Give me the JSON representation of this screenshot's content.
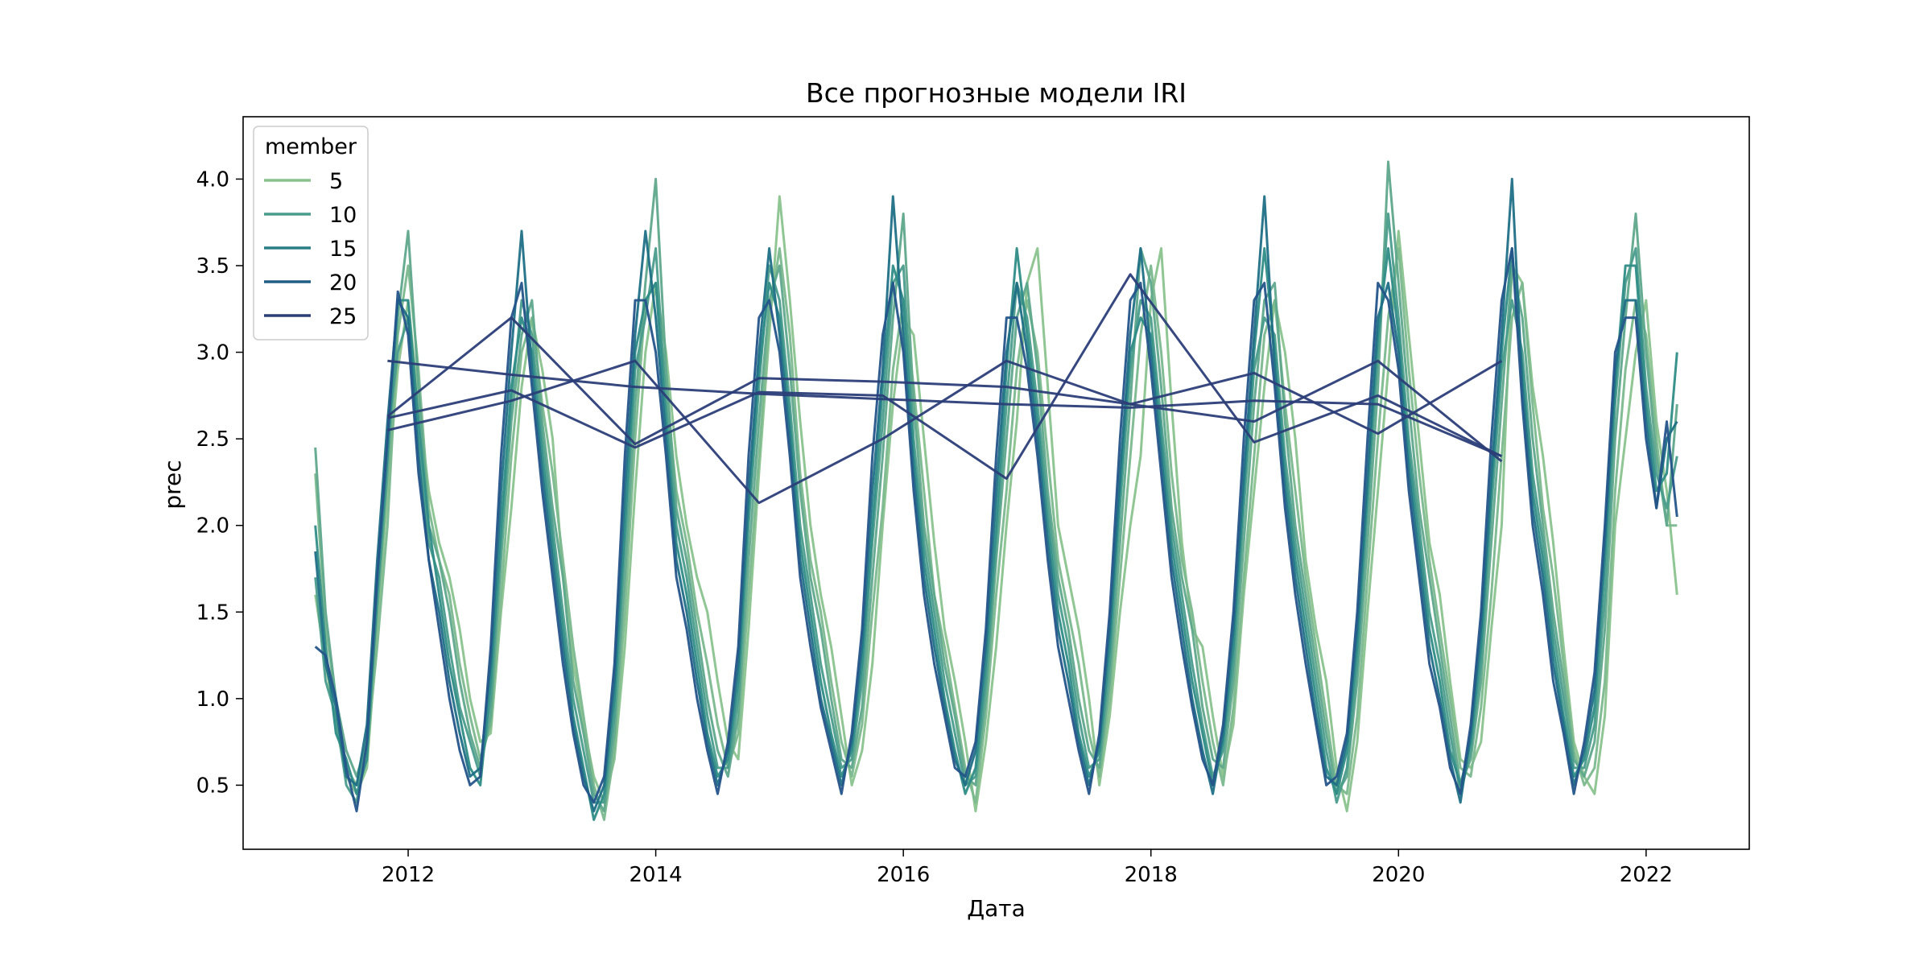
{
  "chart_data": {
    "type": "line",
    "title": "Все прогнозные модели IRI",
    "xlabel": "Дата",
    "ylabel": "prec",
    "xlim": [
      "2010-09-01",
      "2022-11-01"
    ],
    "ylim": [
      0.13,
      4.36
    ],
    "x_ticks": [
      "2012",
      "2014",
      "2016",
      "2018",
      "2020",
      "2022"
    ],
    "y_ticks": [
      "0.5",
      "1.0",
      "1.5",
      "2.0",
      "2.5",
      "3.0",
      "3.5",
      "4.0"
    ],
    "grid": false,
    "legend": {
      "title": "member",
      "placement": "top-left",
      "entries": [
        {
          "label": "5",
          "color": "#8ac28e"
        },
        {
          "label": "10",
          "color": "#4a9c8c"
        },
        {
          "label": "15",
          "color": "#2a7f85"
        },
        {
          "label": "20",
          "color": "#1f5f86"
        },
        {
          "label": "25",
          "color": "#2b3e78"
        }
      ]
    },
    "series_note": "",
    "series": [
      {
        "member": 1,
        "color": "#8ac28e",
        "start": "2011-04",
        "values": [
          1.6,
          1.2,
          0.85,
          0.55,
          0.45,
          0.6,
          1.4,
          2.2,
          2.9,
          3.3,
          2.7,
          2.2,
          1.9,
          1.7,
          1.4,
          1.0,
          0.75,
          0.8,
          1.5,
          2.1,
          2.8,
          3.2,
          2.9,
          2.5,
          1.7,
          1.2,
          0.85,
          0.55,
          0.4,
          0.65,
          1.3,
          2.2,
          3.0,
          3.4,
          3.0,
          2.4,
          2.0,
          1.7,
          1.5,
          1.1,
          0.75,
          0.65,
          1.4,
          2.3,
          3.1,
          3.9,
          3.3,
          2.6,
          2.0,
          1.6,
          1.3,
          0.9,
          0.5,
          0.7,
          1.2,
          2.0,
          2.7,
          3.2,
          3.1,
          2.5,
          1.9,
          1.4,
          1.1,
          0.75,
          0.35,
          0.75,
          1.3,
          2.0,
          2.6,
          3.4,
          3.6,
          2.8,
          2.0,
          1.7,
          1.4,
          1.0,
          0.5,
          0.9,
          1.5,
          2.0,
          2.4,
          3.3,
          3.6,
          2.7,
          1.9,
          1.4,
          1.3,
          0.9,
          0.55,
          0.85,
          1.6,
          2.2,
          2.8,
          3.3,
          3.0,
          2.5,
          1.8,
          1.4,
          1.1,
          0.6,
          0.35,
          0.75,
          1.5,
          2.2,
          2.9,
          3.7,
          3.1,
          2.5,
          1.9,
          1.6,
          1.1,
          0.65,
          0.6,
          0.75,
          1.4,
          2.0,
          3.5,
          3.4,
          2.8,
          2.4,
          1.9,
          1.3,
          0.75,
          0.55,
          0.45,
          0.9,
          2.0,
          2.5,
          3.0,
          3.3,
          2.6,
          2.2,
          1.6
        ]
      },
      {
        "member": 2,
        "color": "#7bb88e",
        "start": "2011-04",
        "values": [
          2.3,
          1.4,
          1.0,
          0.6,
          0.5,
          0.7,
          1.3,
          2.0,
          3.1,
          3.5,
          2.9,
          2.1,
          1.8,
          1.6,
          1.2,
          0.9,
          0.65,
          0.85,
          1.6,
          2.4,
          3.0,
          3.2,
          2.7,
          2.3,
          1.8,
          1.3,
          0.9,
          0.5,
          0.3,
          0.7,
          1.5,
          2.5,
          3.3,
          3.4,
          2.8,
          2.2,
          1.9,
          1.5,
          1.2,
          0.85,
          0.6,
          0.8,
          1.6,
          2.4,
          3.2,
          3.6,
          3.1,
          2.3,
          1.8,
          1.5,
          1.1,
          0.75,
          0.55,
          0.85,
          1.5,
          2.1,
          2.9,
          3.3,
          2.8,
          2.2,
          1.6,
          1.3,
          0.95,
          0.6,
          0.4,
          0.9,
          1.6,
          2.2,
          2.9,
          3.3,
          3.0,
          2.4,
          1.8,
          1.5,
          1.2,
          0.8,
          0.55,
          1.0,
          1.7,
          2.4,
          3.1,
          3.5,
          3.0,
          2.3,
          1.8,
          1.5,
          1.1,
          0.75,
          0.5,
          0.95,
          1.7,
          2.4,
          3.1,
          3.3,
          2.7,
          2.2,
          1.7,
          1.3,
          0.9,
          0.5,
          0.45,
          0.9,
          1.7,
          2.5,
          3.2,
          3.6,
          2.9,
          2.3,
          1.8,
          1.4,
          1.0,
          0.6,
          0.55,
          0.95,
          1.6,
          2.4,
          3.2,
          3.4,
          2.7,
          2.1,
          1.7,
          1.2,
          0.7,
          0.5,
          0.6,
          1.1,
          2.2,
          2.9,
          3.3,
          3.1,
          2.5,
          2.0,
          2.0
        ]
      },
      {
        "member": 3,
        "color": "#5fa88c",
        "start": "2011-04",
        "values": [
          2.45,
          1.5,
          1.0,
          0.7,
          0.55,
          0.75,
          1.5,
          2.3,
          3.2,
          3.7,
          2.8,
          2.0,
          1.8,
          1.5,
          1.1,
          0.8,
          0.6,
          0.9,
          1.8,
          2.6,
          3.1,
          3.3,
          2.6,
          2.1,
          1.7,
          1.1,
          0.8,
          0.45,
          0.35,
          0.8,
          1.7,
          2.7,
          3.4,
          4.0,
          2.9,
          2.1,
          1.8,
          1.4,
          1.0,
          0.7,
          0.55,
          0.9,
          1.8,
          2.6,
          3.3,
          3.5,
          2.9,
          2.2,
          1.7,
          1.4,
          1.0,
          0.65,
          0.6,
          0.95,
          1.7,
          2.4,
          3.2,
          3.8,
          2.7,
          2.0,
          1.6,
          1.2,
          0.9,
          0.55,
          0.5,
          1.0,
          1.8,
          2.5,
          3.2,
          3.4,
          2.9,
          2.2,
          1.7,
          1.4,
          1.0,
          0.7,
          0.6,
          1.1,
          1.9,
          2.7,
          3.6,
          3.4,
          2.8,
          2.1,
          1.7,
          1.4,
          0.95,
          0.65,
          0.6,
          1.1,
          1.9,
          2.7,
          3.3,
          3.4,
          2.6,
          2.0,
          1.6,
          1.2,
          0.8,
          0.45,
          0.55,
          1.1,
          1.9,
          2.8,
          4.1,
          3.4,
          2.7,
          2.1,
          1.7,
          1.3,
          0.9,
          0.5,
          0.65,
          1.1,
          1.9,
          2.7,
          3.5,
          3.2,
          2.5,
          2.0,
          1.5,
          1.1,
          0.65,
          0.55,
          0.75,
          1.4,
          2.5,
          3.2,
          3.8,
          3.0,
          2.4,
          2.0,
          2.7
        ]
      },
      {
        "member": 4,
        "color": "#4a9c8c",
        "start": "2011-04",
        "values": [
          1.7,
          1.1,
          0.9,
          0.5,
          0.4,
          0.8,
          1.7,
          2.5,
          3.0,
          3.2,
          2.5,
          1.9,
          1.7,
          1.3,
          0.95,
          0.75,
          0.55,
          1.0,
          1.9,
          2.7,
          3.3,
          3.1,
          2.5,
          2.0,
          1.5,
          1.0,
          0.7,
          0.4,
          0.4,
          0.9,
          1.9,
          2.9,
          3.2,
          3.6,
          2.7,
          2.0,
          1.7,
          1.3,
          0.9,
          0.6,
          0.6,
          1.0,
          2.0,
          2.8,
          3.5,
          3.3,
          2.7,
          2.0,
          1.6,
          1.2,
          0.9,
          0.6,
          0.65,
          1.1,
          1.9,
          2.6,
          3.4,
          3.5,
          2.5,
          1.9,
          1.5,
          1.1,
          0.8,
          0.5,
          0.55,
          1.1,
          1.9,
          2.7,
          3.4,
          3.2,
          2.7,
          2.1,
          1.6,
          1.3,
          0.9,
          0.6,
          0.65,
          1.2,
          2.1,
          2.9,
          3.3,
          3.2,
          2.6,
          2.0,
          1.6,
          1.2,
          0.85,
          0.55,
          0.7,
          1.2,
          2.1,
          2.9,
          3.2,
          3.1,
          2.4,
          1.9,
          1.5,
          1.1,
          0.7,
          0.4,
          0.6,
          1.2,
          2.1,
          3.0,
          3.8,
          3.2,
          2.5,
          2.0,
          1.5,
          1.2,
          0.8,
          0.45,
          0.7,
          1.2,
          2.1,
          2.9,
          3.3,
          3.0,
          2.3,
          1.9,
          1.4,
          1.0,
          0.6,
          0.6,
          0.85,
          1.6,
          2.7,
          3.4,
          3.6,
          2.8,
          2.3,
          2.1,
          2.4
        ]
      },
      {
        "member": 5,
        "color": "#2f8c87",
        "start": "2011-04",
        "values": [
          2.0,
          1.3,
          0.8,
          0.65,
          0.45,
          0.65,
          1.6,
          2.4,
          3.3,
          3.3,
          2.6,
          2.0,
          1.6,
          1.2,
          0.9,
          0.6,
          0.5,
          1.1,
          2.0,
          2.8,
          3.2,
          3.0,
          2.4,
          1.9,
          1.4,
          0.9,
          0.6,
          0.3,
          0.45,
          1.0,
          2.0,
          3.0,
          3.3,
          3.4,
          2.6,
          1.9,
          1.6,
          1.2,
          0.8,
          0.55,
          0.65,
          1.1,
          2.1,
          2.9,
          3.4,
          3.2,
          2.6,
          1.9,
          1.5,
          1.1,
          0.8,
          0.55,
          0.7,
          1.2,
          2.0,
          2.8,
          3.5,
          3.3,
          2.4,
          1.8,
          1.4,
          1.0,
          0.7,
          0.45,
          0.6,
          1.2,
          2.0,
          2.9,
          3.6,
          3.1,
          2.6,
          2.0,
          1.5,
          1.2,
          0.8,
          0.55,
          0.7,
          1.3,
          2.2,
          3.0,
          3.2,
          3.1,
          2.5,
          1.9,
          1.5,
          1.1,
          0.8,
          0.5,
          0.75,
          1.3,
          2.2,
          3.0,
          3.6,
          3.0,
          2.3,
          1.8,
          1.4,
          1.0,
          0.6,
          0.45,
          0.7,
          1.3,
          2.2,
          3.1,
          3.6,
          3.1,
          2.4,
          1.9,
          1.4,
          1.1,
          0.7,
          0.5,
          0.75,
          1.3,
          2.2,
          3.0,
          3.6,
          2.9,
          2.2,
          1.8,
          1.3,
          0.9,
          0.55,
          0.65,
          0.95,
          1.8,
          2.8,
          3.5,
          3.5,
          2.7,
          2.2,
          2.3,
          3.0
        ]
      },
      {
        "member": 6,
        "color": "#1f6f86",
        "start": "2011-04",
        "values": [
          1.85,
          1.2,
          0.95,
          0.55,
          0.5,
          0.85,
          1.8,
          2.6,
          3.3,
          3.2,
          2.4,
          1.8,
          1.5,
          1.1,
          0.8,
          0.55,
          0.6,
          1.2,
          2.2,
          3.0,
          3.7,
          2.9,
          2.3,
          1.8,
          1.3,
          0.85,
          0.55,
          0.35,
          0.5,
          1.1,
          2.2,
          3.1,
          3.7,
          3.2,
          2.5,
          1.8,
          1.5,
          1.1,
          0.75,
          0.5,
          0.7,
          1.2,
          2.2,
          3.0,
          3.6,
          3.1,
          2.5,
          1.8,
          1.4,
          1.0,
          0.75,
          0.5,
          0.75,
          1.3,
          2.2,
          2.9,
          3.9,
          3.1,
          2.3,
          1.7,
          1.3,
          0.95,
          0.65,
          0.5,
          0.7,
          1.3,
          2.2,
          3.0,
          3.4,
          3.0,
          2.5,
          1.9,
          1.4,
          1.1,
          0.75,
          0.5,
          0.75,
          1.4,
          2.3,
          3.1,
          3.6,
          3.0,
          2.4,
          1.8,
          1.4,
          1.0,
          0.7,
          0.45,
          0.8,
          1.4,
          2.3,
          3.1,
          3.9,
          2.9,
          2.2,
          1.7,
          1.3,
          0.9,
          0.55,
          0.5,
          0.75,
          1.4,
          2.3,
          3.2,
          3.4,
          3.0,
          2.3,
          1.8,
          1.3,
          1.0,
          0.65,
          0.4,
          0.8,
          1.4,
          2.3,
          3.1,
          4.0,
          2.8,
          2.1,
          1.7,
          1.2,
          0.85,
          0.5,
          0.7,
          1.05,
          1.9,
          2.9,
          3.3,
          3.3,
          2.6,
          2.1,
          2.5,
          2.6
        ]
      },
      {
        "member": 7,
        "color": "#24548a",
        "start": "2011-04",
        "values": [
          1.3,
          1.25,
          1.0,
          0.6,
          0.35,
          0.75,
          1.7,
          2.5,
          3.35,
          3.1,
          2.3,
          1.8,
          1.4,
          1.0,
          0.7,
          0.5,
          0.55,
          1.3,
          2.4,
          3.2,
          3.4,
          2.8,
          2.2,
          1.7,
          1.2,
          0.8,
          0.5,
          0.4,
          0.55,
          1.2,
          2.4,
          3.3,
          3.3,
          3.0,
          2.4,
          1.7,
          1.4,
          1.0,
          0.7,
          0.45,
          0.75,
          1.3,
          2.4,
          3.2,
          3.3,
          3.0,
          2.4,
          1.7,
          1.3,
          0.95,
          0.7,
          0.45,
          0.8,
          1.4,
          2.4,
          3.1,
          3.4,
          3.0,
          2.2,
          1.6,
          1.2,
          0.9,
          0.6,
          0.55,
          0.75,
          1.4,
          2.4,
          3.2,
          3.2,
          2.9,
          2.4,
          1.8,
          1.3,
          1.0,
          0.7,
          0.45,
          0.8,
          1.5,
          2.5,
          3.3,
          3.4,
          2.9,
          2.3,
          1.7,
          1.3,
          0.95,
          0.65,
          0.5,
          0.85,
          1.5,
          2.5,
          3.3,
          3.4,
          2.8,
          2.1,
          1.6,
          1.2,
          0.85,
          0.5,
          0.55,
          0.8,
          1.5,
          2.5,
          3.4,
          3.3,
          2.9,
          2.2,
          1.7,
          1.2,
          0.95,
          0.6,
          0.45,
          0.85,
          1.5,
          2.5,
          3.3,
          3.6,
          2.7,
          2.0,
          1.6,
          1.1,
          0.8,
          0.45,
          0.75,
          1.15,
          2.0,
          3.0,
          3.2,
          3.2,
          2.5,
          2.1,
          2.6,
          2.05
        ]
      },
      {
        "member": 8,
        "color": "#2b3e78",
        "start": "2011-11",
        "step": 12,
        "values": [
          2.95,
          2.87,
          2.8,
          2.76,
          2.73,
          2.7,
          2.68,
          2.72,
          2.7,
          2.4
        ]
      },
      {
        "member": 9,
        "color": "#2b3e78",
        "start": "2011-11",
        "step": 12,
        "values": [
          2.63,
          3.2,
          2.47,
          2.85,
          2.83,
          2.8,
          2.7,
          2.6,
          2.95,
          2.37
        ]
      },
      {
        "member": 10,
        "color": "#2b3e78",
        "start": "2011-11",
        "step": 12,
        "values": [
          2.55,
          2.72,
          2.95,
          2.13,
          2.5,
          2.95,
          2.7,
          2.88,
          2.53,
          2.95
        ]
      },
      {
        "member": 11,
        "color": "#2b3e78",
        "start": "2011-11",
        "step": 12,
        "values": [
          2.62,
          2.78,
          2.45,
          2.77,
          2.75,
          2.27,
          3.45,
          2.48,
          2.75,
          2.4
        ]
      }
    ]
  }
}
